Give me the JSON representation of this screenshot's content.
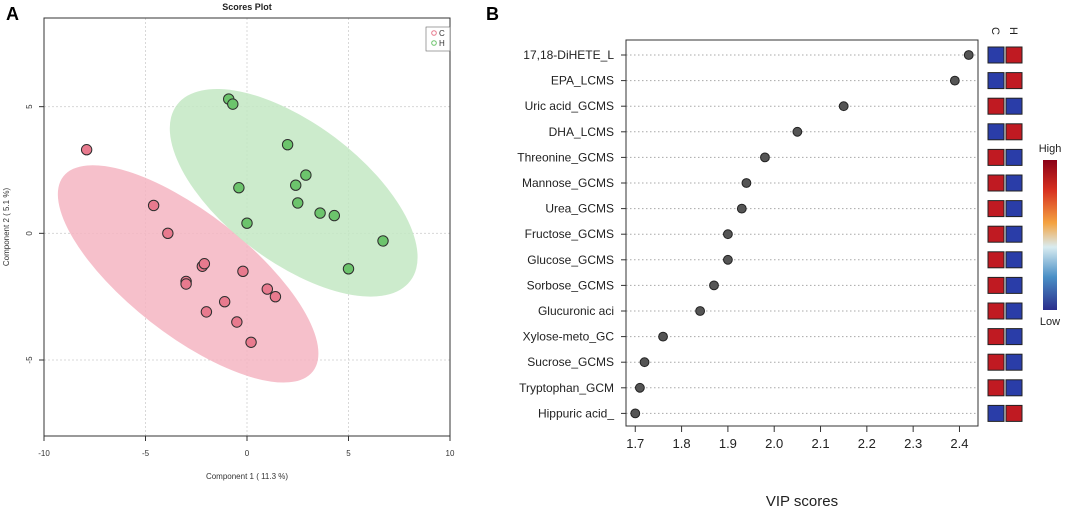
{
  "panel_a": {
    "letter": "A",
    "colors": {
      "C": "#e87a8e",
      "H": "#6cc46c",
      "C_ellipse": "#f5b5c2",
      "H_ellipse": "#c3e7c3"
    },
    "chart_data": {
      "type": "scatter",
      "title": "Scores Plot",
      "xlabel": "Component 1 ( 11.3 %)",
      "ylabel": "Component 2 ( 5.1 %)",
      "xlim": [
        -10,
        10
      ],
      "ylim": [
        -8,
        8.5
      ],
      "xticks": [
        "-10",
        "-5",
        "0",
        "5",
        "10"
      ],
      "yticks": [
        "-5",
        "0",
        "5"
      ],
      "xtick_values": [
        -10,
        -5,
        0,
        5,
        10
      ],
      "ytick_values": [
        -5,
        0,
        5
      ],
      "legend": [
        "C",
        "H"
      ],
      "legend_position": "top-right",
      "series": [
        {
          "name": "C",
          "points": [
            [
              -7.9,
              3.3
            ],
            [
              -4.6,
              1.1
            ],
            [
              -3.9,
              0.0
            ],
            [
              -3.0,
              -1.9
            ],
            [
              -3.0,
              -2.0
            ],
            [
              -2.2,
              -1.3
            ],
            [
              -2.1,
              -1.2
            ],
            [
              -2.0,
              -3.1
            ],
            [
              -1.1,
              -2.7
            ],
            [
              -0.5,
              -3.5
            ],
            [
              -0.2,
              -1.5
            ],
            [
              0.2,
              -4.3
            ],
            [
              1.0,
              -2.2
            ],
            [
              1.4,
              -2.5
            ]
          ]
        },
        {
          "name": "H",
          "points": [
            [
              -0.9,
              5.3
            ],
            [
              -0.7,
              5.1
            ],
            [
              -0.4,
              1.8
            ],
            [
              0.0,
              0.4
            ],
            [
              2.0,
              3.5
            ],
            [
              2.4,
              1.9
            ],
            [
              2.5,
              1.2
            ],
            [
              2.9,
              2.3
            ],
            [
              3.6,
              0.8
            ],
            [
              4.3,
              0.7
            ],
            [
              5.0,
              -1.4
            ],
            [
              6.7,
              -0.3
            ]
          ]
        }
      ],
      "ellipses": [
        {
          "name": "C",
          "cx": -2.9,
          "cy": -1.6,
          "rx": 7.8,
          "ry": 3.0,
          "angle_deg": -38
        },
        {
          "name": "H",
          "cx": 2.3,
          "cy": 1.6,
          "rx": 7.2,
          "ry": 3.4,
          "angle_deg": -37
        }
      ]
    }
  },
  "panel_b": {
    "letter": "B",
    "colors": {
      "dot": "#555555",
      "high": "#c01a22",
      "low": "#2a3da8"
    },
    "chart_data": {
      "type": "scatter",
      "xlabel": "VIP scores",
      "xlim": [
        1.68,
        2.44
      ],
      "xticks": [
        "1.7",
        "1.8",
        "1.9",
        "2.0",
        "2.1",
        "2.2",
        "2.3",
        "2.4"
      ],
      "xtick_values": [
        1.7,
        1.8,
        1.9,
        2.0,
        2.1,
        2.2,
        2.3,
        2.4
      ],
      "features": [
        "17,18-DiHETE_L",
        "EPA_LCMS",
        "Uric acid_GCMS",
        "DHA_LCMS",
        "Threonine_GCMS",
        "Mannose_GCMS",
        "Urea_GCMS",
        "Fructose_GCMS",
        "Glucose_GCMS",
        "Sorbose_GCMS",
        "Glucuronic aci",
        "Xylose-meto_GC",
        "Sucrose_GCMS",
        "Tryptophan_GCM",
        "Hippuric acid_"
      ],
      "vip": [
        2.42,
        2.39,
        2.15,
        2.05,
        1.98,
        1.94,
        1.93,
        1.9,
        1.9,
        1.87,
        1.84,
        1.76,
        1.72,
        1.71,
        1.7
      ],
      "heatmap_columns": [
        "C",
        "H"
      ],
      "heatmap": [
        [
          "low",
          "high"
        ],
        [
          "low",
          "high"
        ],
        [
          "high",
          "low"
        ],
        [
          "low",
          "high"
        ],
        [
          "high",
          "low"
        ],
        [
          "high",
          "low"
        ],
        [
          "high",
          "low"
        ],
        [
          "high",
          "low"
        ],
        [
          "high",
          "low"
        ],
        [
          "high",
          "low"
        ],
        [
          "high",
          "low"
        ],
        [
          "high",
          "low"
        ],
        [
          "high",
          "low"
        ],
        [
          "high",
          "low"
        ],
        [
          "low",
          "high"
        ]
      ],
      "scale_labels": {
        "high": "High",
        "low": "Low"
      }
    }
  }
}
